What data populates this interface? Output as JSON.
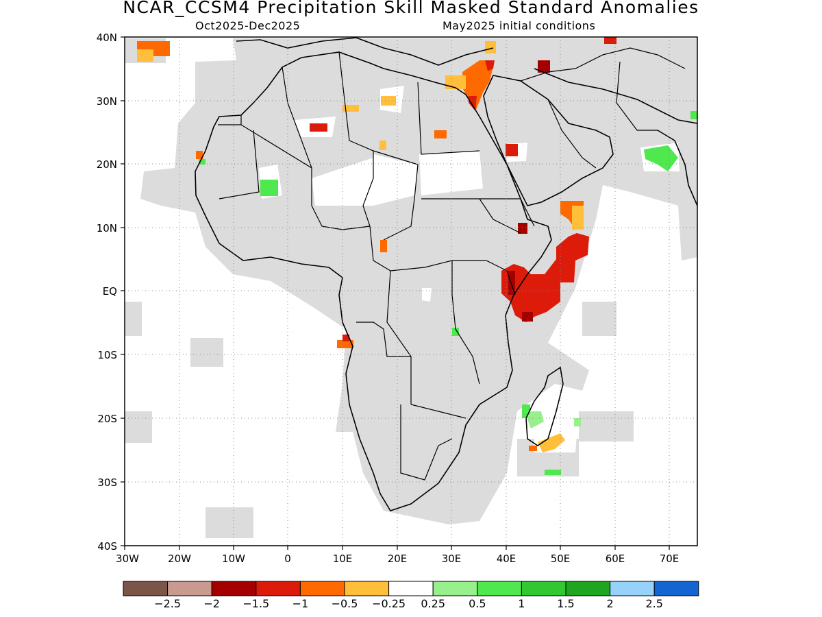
{
  "header": {
    "title": "NCAR_CCSM4 Precipitation Skill Masked Standard Anomalies",
    "period": "Oct2025-Dec2025",
    "initial_conditions": "May2025 initial conditions"
  },
  "axes": {
    "lat_labels": [
      "40N",
      "30N",
      "20N",
      "10N",
      "EQ",
      "10S",
      "20S",
      "30S",
      "40S"
    ],
    "lon_labels": [
      "30W",
      "20W",
      "10W",
      "0",
      "10E",
      "20E",
      "30E",
      "40E",
      "50E",
      "60E",
      "70E"
    ],
    "lon_range": [
      -30,
      75
    ],
    "lat_range": [
      -40,
      40
    ],
    "grid": "dotted"
  },
  "colorbar": {
    "colors": [
      "#7a5548",
      "#c89a90",
      "#a50000",
      "#dd1b0a",
      "#ff6a00",
      "#ffbf3a",
      "#ffffff",
      "#98f08c",
      "#4fe84f",
      "#32c832",
      "#1fa51f",
      "#96d2fa",
      "#1464d2"
    ],
    "labels": [
      "-2.5",
      "-2",
      "-1.5",
      "-1",
      "-0.5",
      "-0.25",
      "0.25",
      "0.5",
      "1",
      "1.5",
      "2",
      "2.5"
    ]
  },
  "colors": {
    "masked": "#dcdcdc",
    "ocean": "#ffffff",
    "coast": "#000000"
  }
}
